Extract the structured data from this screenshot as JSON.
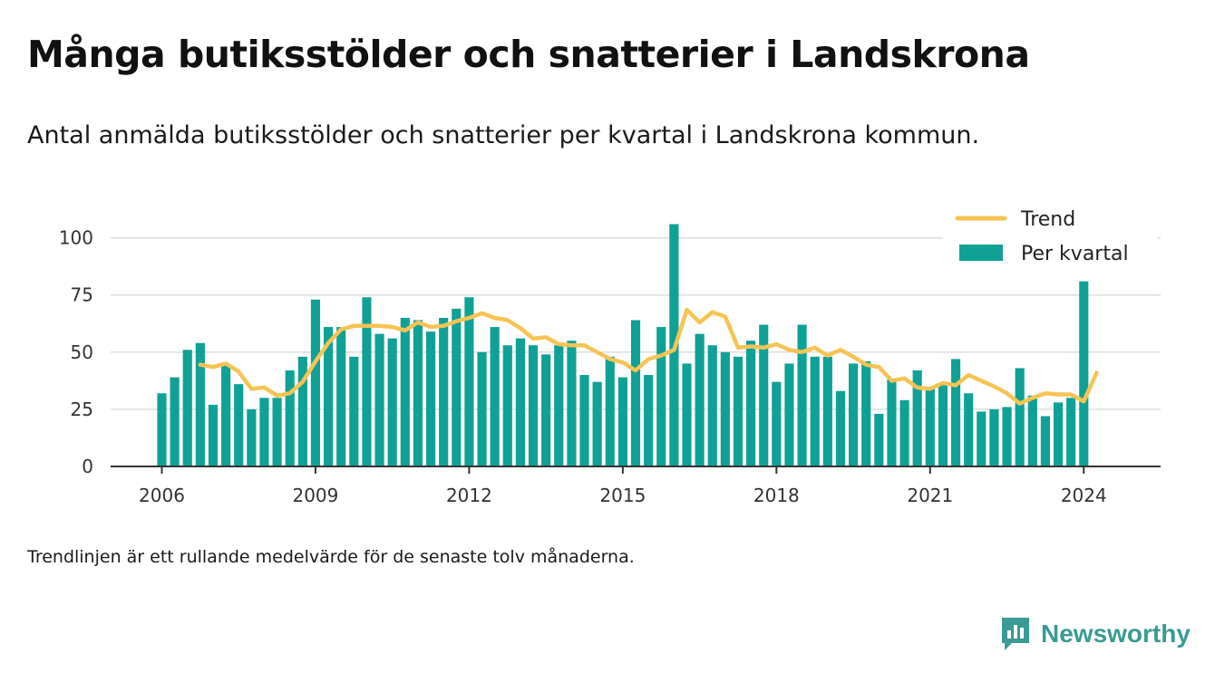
{
  "header": {
    "title": "Många butiksstölder och snatterier i Landskrona",
    "subtitle": "Antal anmälda butiksstölder och snatterier per kvartal i Landskrona kommun."
  },
  "footnote": "Trendlinjen är ett rullande medelvärde för de senaste tolv månaderna.",
  "brand": {
    "name": "Newsworthy",
    "icon": "newsworthy-logo-icon",
    "color": "#3a9a94"
  },
  "chart_data": {
    "type": "bar",
    "x_start": 2006,
    "x_step_per_bar": 0.25,
    "xlim": [
      2005,
      2025.5
    ],
    "ylim": [
      0,
      105
    ],
    "x_ticks": [
      2006,
      2009,
      2012,
      2015,
      2018,
      2021,
      2024
    ],
    "y_ticks": [
      0,
      25,
      50,
      75,
      100
    ],
    "grid": true,
    "legend_position": "top-right",
    "colors": {
      "bars": "#0fa196",
      "trend": "#f6c453",
      "grid": "#dddddd",
      "axis": "#333333"
    },
    "series": [
      {
        "name": "Per kvartal",
        "type": "bar",
        "values": [
          32,
          39,
          51,
          54,
          27,
          44,
          36,
          25,
          30,
          30,
          42,
          48,
          73,
          61,
          61,
          48,
          74,
          58,
          56,
          65,
          64,
          59,
          65,
          69,
          74,
          50,
          61,
          53,
          56,
          53,
          49,
          53,
          55,
          40,
          37,
          48,
          39,
          64,
          40,
          61,
          106,
          45,
          58,
          53,
          50,
          48,
          55,
          62,
          37,
          45,
          62,
          48,
          48,
          33,
          45,
          46,
          23,
          38,
          29,
          42,
          34,
          36,
          47,
          32,
          24,
          25,
          26,
          43,
          31,
          22,
          28,
          30,
          81
        ]
      },
      {
        "name": "Trend",
        "type": "line",
        "x_offset_bars": 3,
        "values": [
          44.5,
          43.5,
          45,
          41.5,
          34,
          34.5,
          31,
          32,
          37,
          46,
          54,
          60,
          61.5,
          61.5,
          61.5,
          61,
          59.5,
          63,
          61,
          61.5,
          63.5,
          65,
          67,
          65,
          64,
          60.5,
          56,
          56.5,
          53.5,
          53,
          53,
          50,
          47,
          45.5,
          42,
          47,
          48.5,
          51,
          68.5,
          63,
          67.5,
          65.5,
          52,
          52.5,
          52,
          53.5,
          51,
          50,
          52,
          48.5,
          51,
          48,
          44.5,
          43.5,
          37.5,
          38.5,
          34.5,
          34,
          36.5,
          35.5,
          40,
          37.5,
          35,
          32,
          27.5,
          30,
          32,
          31.5,
          31.5,
          28.5,
          41
        ]
      }
    ]
  }
}
